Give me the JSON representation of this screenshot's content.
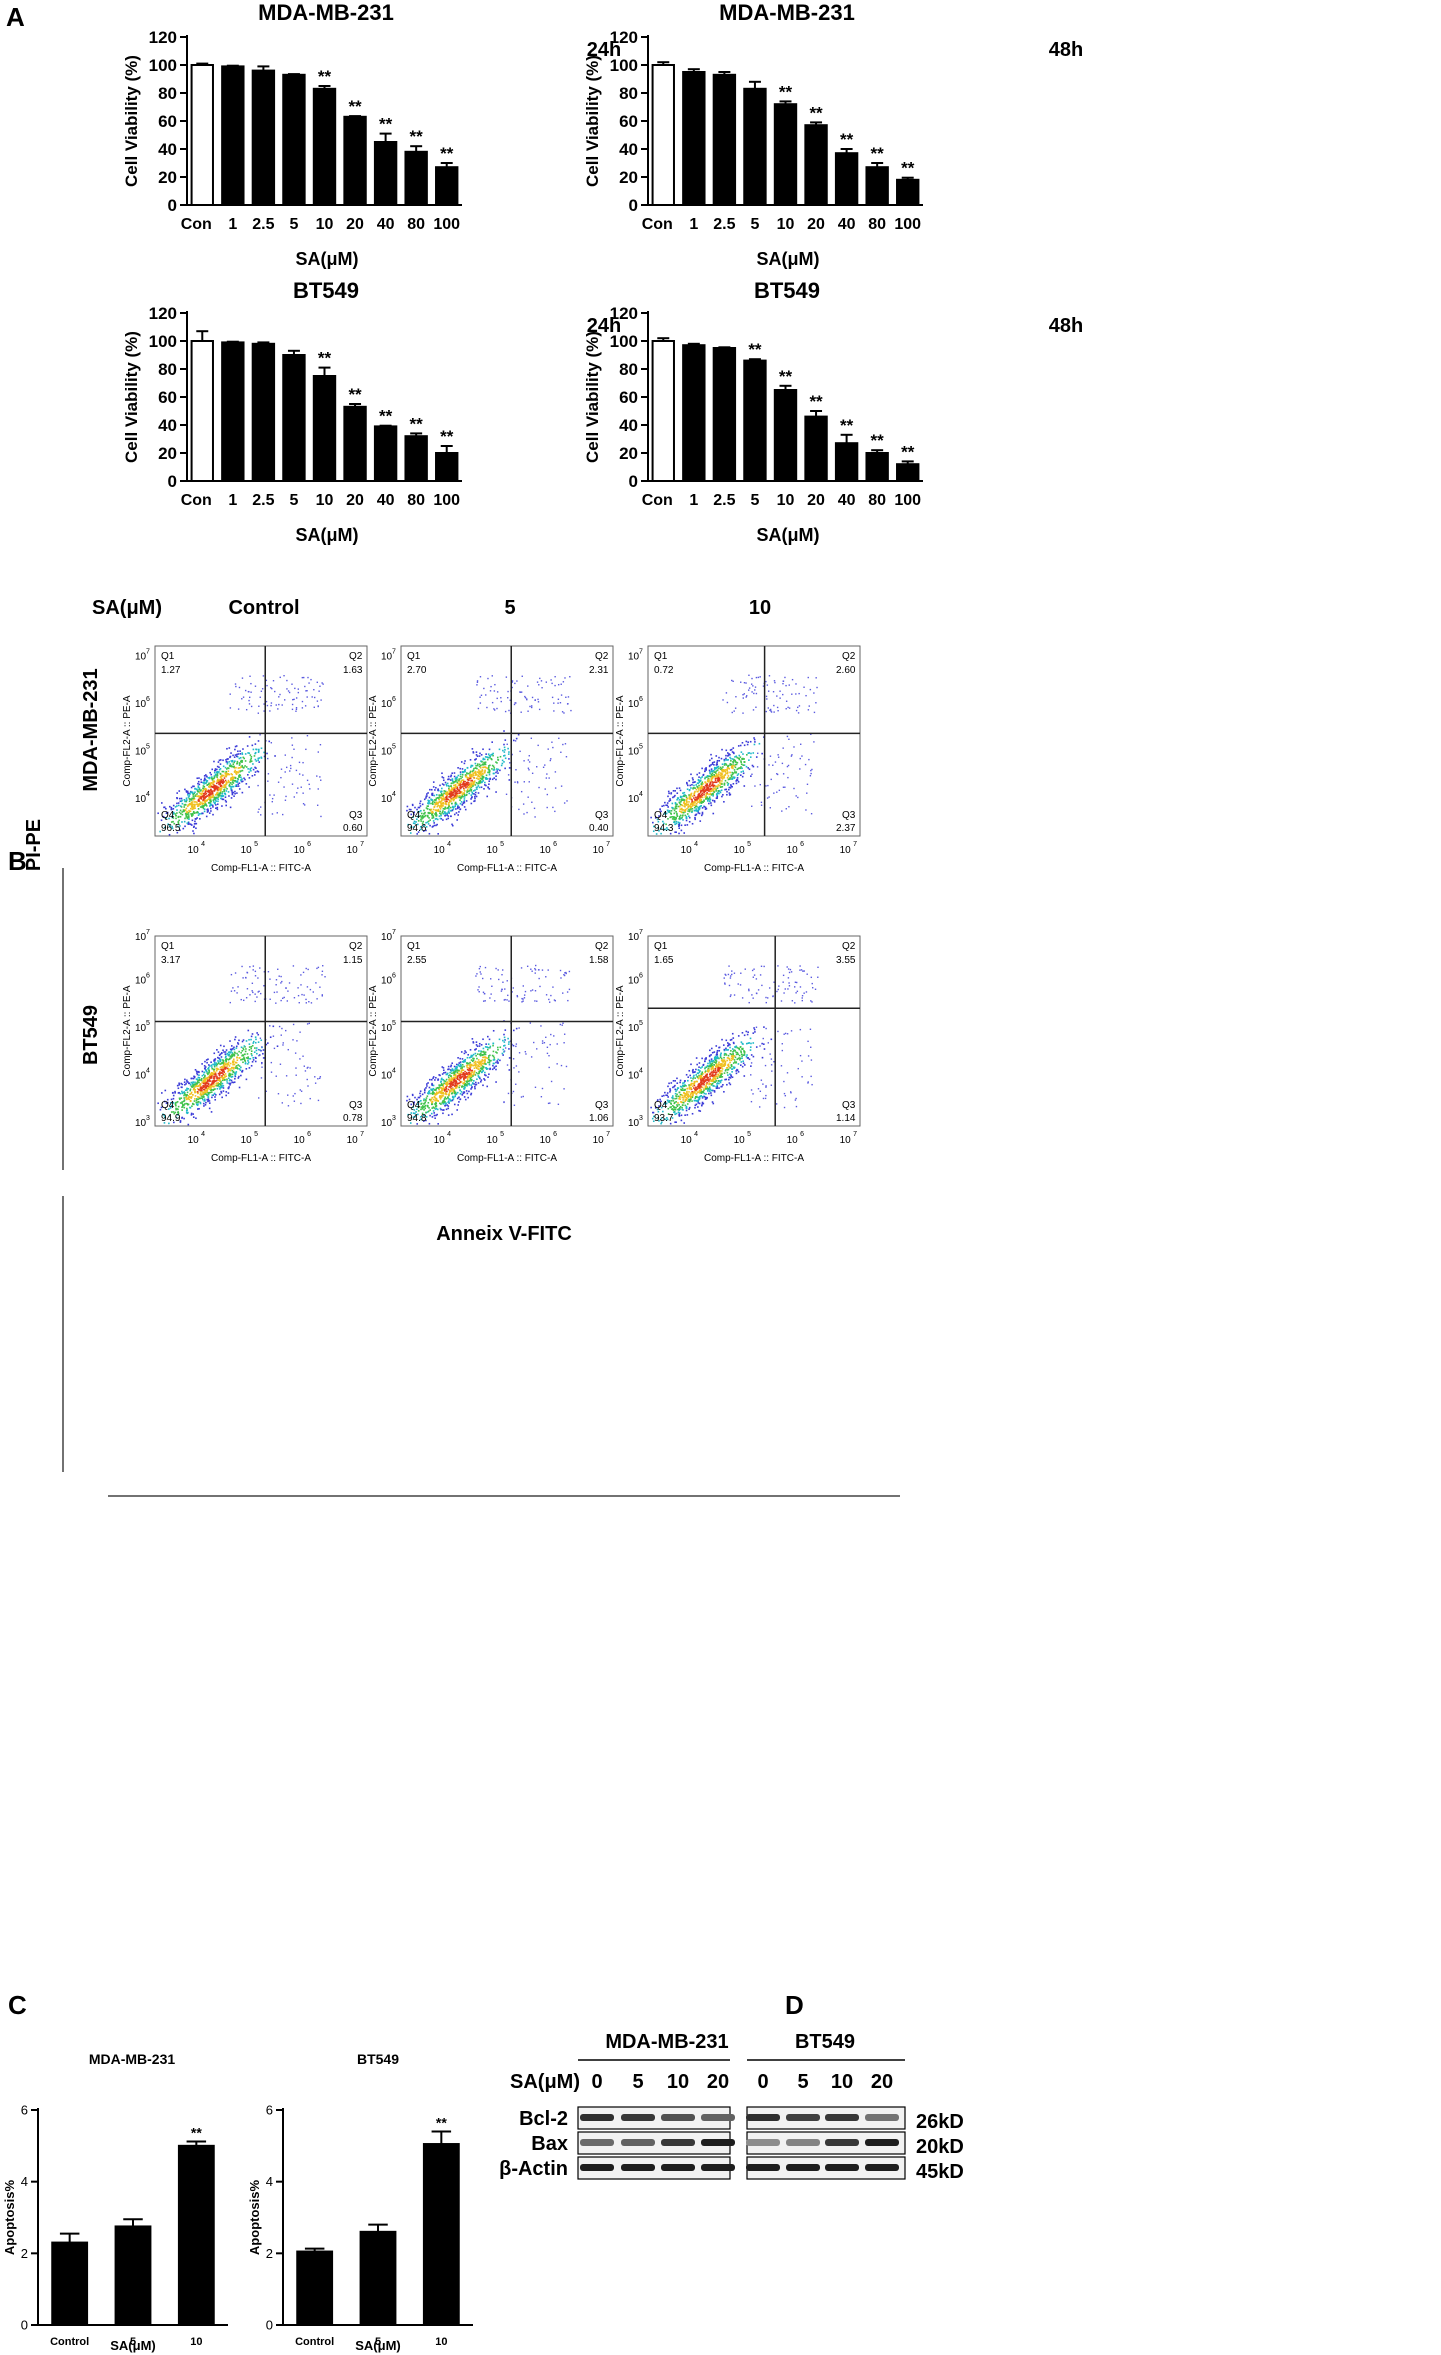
{
  "panel_labels": {
    "a": "A",
    "b": "B",
    "c": "C",
    "d": "D"
  },
  "chart_data": [
    {
      "type": "bar",
      "panel": "A",
      "title": "MDA-MB-231",
      "timepoint": "24h",
      "categories": [
        "Con",
        "1",
        "2.5",
        "5",
        "10",
        "20",
        "40",
        "80",
        "100"
      ],
      "values": [
        100,
        99,
        96,
        93,
        83,
        63,
        45,
        38,
        27
      ],
      "errors": [
        1,
        0.5,
        3,
        0.5,
        2,
        0.5,
        6,
        4,
        3
      ],
      "significance": [
        "",
        "",
        "",
        "",
        "**",
        "**",
        "**",
        "**",
        "**"
      ],
      "xlabel": "SA(μM)",
      "ylabel": "Cell Viability (%)",
      "ylim": [
        0,
        120
      ],
      "yticks": [
        0,
        20,
        40,
        60,
        80,
        100,
        120
      ]
    },
    {
      "type": "bar",
      "panel": "A",
      "title": "MDA-MB-231",
      "timepoint": "48h",
      "categories": [
        "Con",
        "1",
        "2.5",
        "5",
        "10",
        "20",
        "40",
        "80",
        "100"
      ],
      "values": [
        100,
        95,
        93,
        83,
        72,
        57,
        37,
        27,
        18
      ],
      "errors": [
        2,
        2,
        2,
        5,
        2,
        2,
        3,
        3,
        1.5
      ],
      "significance": [
        "",
        "",
        "",
        "",
        "**",
        "**",
        "**",
        "**",
        "**"
      ],
      "xlabel": "SA(μM)",
      "ylabel": "Cell Viability (%)",
      "ylim": [
        0,
        120
      ],
      "yticks": [
        0,
        20,
        40,
        60,
        80,
        100,
        120
      ]
    },
    {
      "type": "bar",
      "panel": "A",
      "title": "BT549",
      "timepoint": "24h",
      "categories": [
        "Con",
        "1",
        "2.5",
        "5",
        "10",
        "20",
        "40",
        "80",
        "100"
      ],
      "values": [
        100,
        99,
        98,
        90,
        75,
        53,
        39,
        32,
        20
      ],
      "errors": [
        7,
        0.5,
        1,
        3,
        6,
        2,
        0.5,
        2,
        5
      ],
      "significance": [
        "",
        "",
        "",
        "",
        "**",
        "**",
        "**",
        "**",
        "**"
      ],
      "xlabel": "SA(μM)",
      "ylabel": "Cell Viability (%)",
      "ylim": [
        0,
        120
      ],
      "yticks": [
        0,
        20,
        40,
        60,
        80,
        100,
        120
      ]
    },
    {
      "type": "bar",
      "panel": "A",
      "title": "BT549",
      "timepoint": "48h",
      "categories": [
        "Con",
        "1",
        "2.5",
        "5",
        "10",
        "20",
        "40",
        "80",
        "100"
      ],
      "values": [
        100,
        97,
        95,
        86,
        65,
        46,
        27,
        20,
        12
      ],
      "errors": [
        2,
        1,
        0.5,
        1,
        3,
        4,
        6,
        2,
        2
      ],
      "significance": [
        "",
        "",
        "",
        "**",
        "**",
        "**",
        "**",
        "**",
        "**"
      ],
      "xlabel": "SA(μM)",
      "ylabel": "Cell Viability (%)",
      "ylim": [
        0,
        120
      ],
      "yticks": [
        0,
        20,
        40,
        60,
        80,
        100,
        120
      ]
    },
    {
      "type": "bar",
      "panel": "C",
      "title": "MDA-MB-231",
      "categories": [
        "Control",
        "5",
        "10"
      ],
      "values": [
        2.3,
        2.75,
        5.0
      ],
      "errors": [
        0.25,
        0.2,
        0.12
      ],
      "significance": [
        "",
        "",
        "**"
      ],
      "xlabel": "SA(μM)",
      "ylabel": "Apoptosis%",
      "ylim": [
        0,
        6
      ],
      "yticks": [
        0,
        2,
        4,
        6
      ]
    },
    {
      "type": "bar",
      "panel": "C",
      "title": "BT549",
      "categories": [
        "Control",
        "5",
        "10"
      ],
      "values": [
        2.05,
        2.6,
        5.05
      ],
      "errors": [
        0.08,
        0.2,
        0.35
      ],
      "significance": [
        "",
        "",
        "**"
      ],
      "xlabel": "SA(μM)",
      "ylabel": "Apoptosis%",
      "ylim": [
        0,
        6
      ],
      "yticks": [
        0,
        2,
        4,
        6
      ]
    }
  ],
  "flow": {
    "header_label": "SA(μM)",
    "columns": [
      "Control",
      "5",
      "10"
    ],
    "rows": [
      "MDA-MB-231",
      "BT549"
    ],
    "y_axis_group_label": "PI-PE",
    "x_axis_group_label": "Anneix V-FITC",
    "plot_xlabel": "Comp-FL1-A :: FITC-A",
    "plot_ylabel": "Comp-FL2-A :: PE-A",
    "quadrant_names": [
      "Q1",
      "Q2",
      "Q3",
      "Q4"
    ],
    "tick_base": "10",
    "x_tick_exponents": [
      "4",
      "5",
      "6",
      "7"
    ],
    "y_tick_exponents": [
      "4",
      "5",
      "6",
      "7"
    ],
    "y_tick_exponents_bt549": [
      "3",
      "4",
      "5",
      "6",
      "7"
    ],
    "plots": [
      {
        "row": "MDA-MB-231",
        "column": "Control",
        "q1": "1.27",
        "q2": "1.63",
        "q3": "0.60",
        "q4": "96.5"
      },
      {
        "row": "MDA-MB-231",
        "column": "5",
        "q1": "2.70",
        "q2": "2.31",
        "q3": "0.40",
        "q4": "94.6"
      },
      {
        "row": "MDA-MB-231",
        "column": "10",
        "q1": "0.72",
        "q2": "2.60",
        "q3": "2.37",
        "q4": "94.3"
      },
      {
        "row": "BT549",
        "column": "Control",
        "q1": "3.17",
        "q2": "1.15",
        "q3": "0.78",
        "q4": "94.9"
      },
      {
        "row": "BT549",
        "column": "5",
        "q1": "2.55",
        "q2": "1.58",
        "q3": "1.06",
        "q4": "94.8"
      },
      {
        "row": "BT549",
        "column": "10",
        "q1": "1.65",
        "q2": "3.55",
        "q3": "1.14",
        "q4": "93.7"
      }
    ]
  },
  "western": {
    "header_label": "SA(μM)",
    "groups": [
      "MDA-MB-231",
      "BT549"
    ],
    "lanes": [
      "0",
      "5",
      "10",
      "20"
    ],
    "proteins": [
      "Bcl-2",
      "Bax",
      "β-Actin"
    ],
    "sizes": [
      "26kD",
      "20kD",
      "45kD"
    ],
    "band_intensity": {
      "MDA-MB-231": {
        "Bcl-2": [
          0.9,
          0.85,
          0.7,
          0.6
        ],
        "Bax": [
          0.55,
          0.6,
          0.85,
          1.0
        ],
        "β-Actin": [
          1,
          1,
          1,
          1
        ]
      },
      "BT549": {
        "Bcl-2": [
          0.9,
          0.8,
          0.85,
          0.5
        ],
        "Bax": [
          0.35,
          0.4,
          0.85,
          1.0
        ],
        "β-Actin": [
          1,
          1,
          1,
          1
        ]
      }
    }
  }
}
